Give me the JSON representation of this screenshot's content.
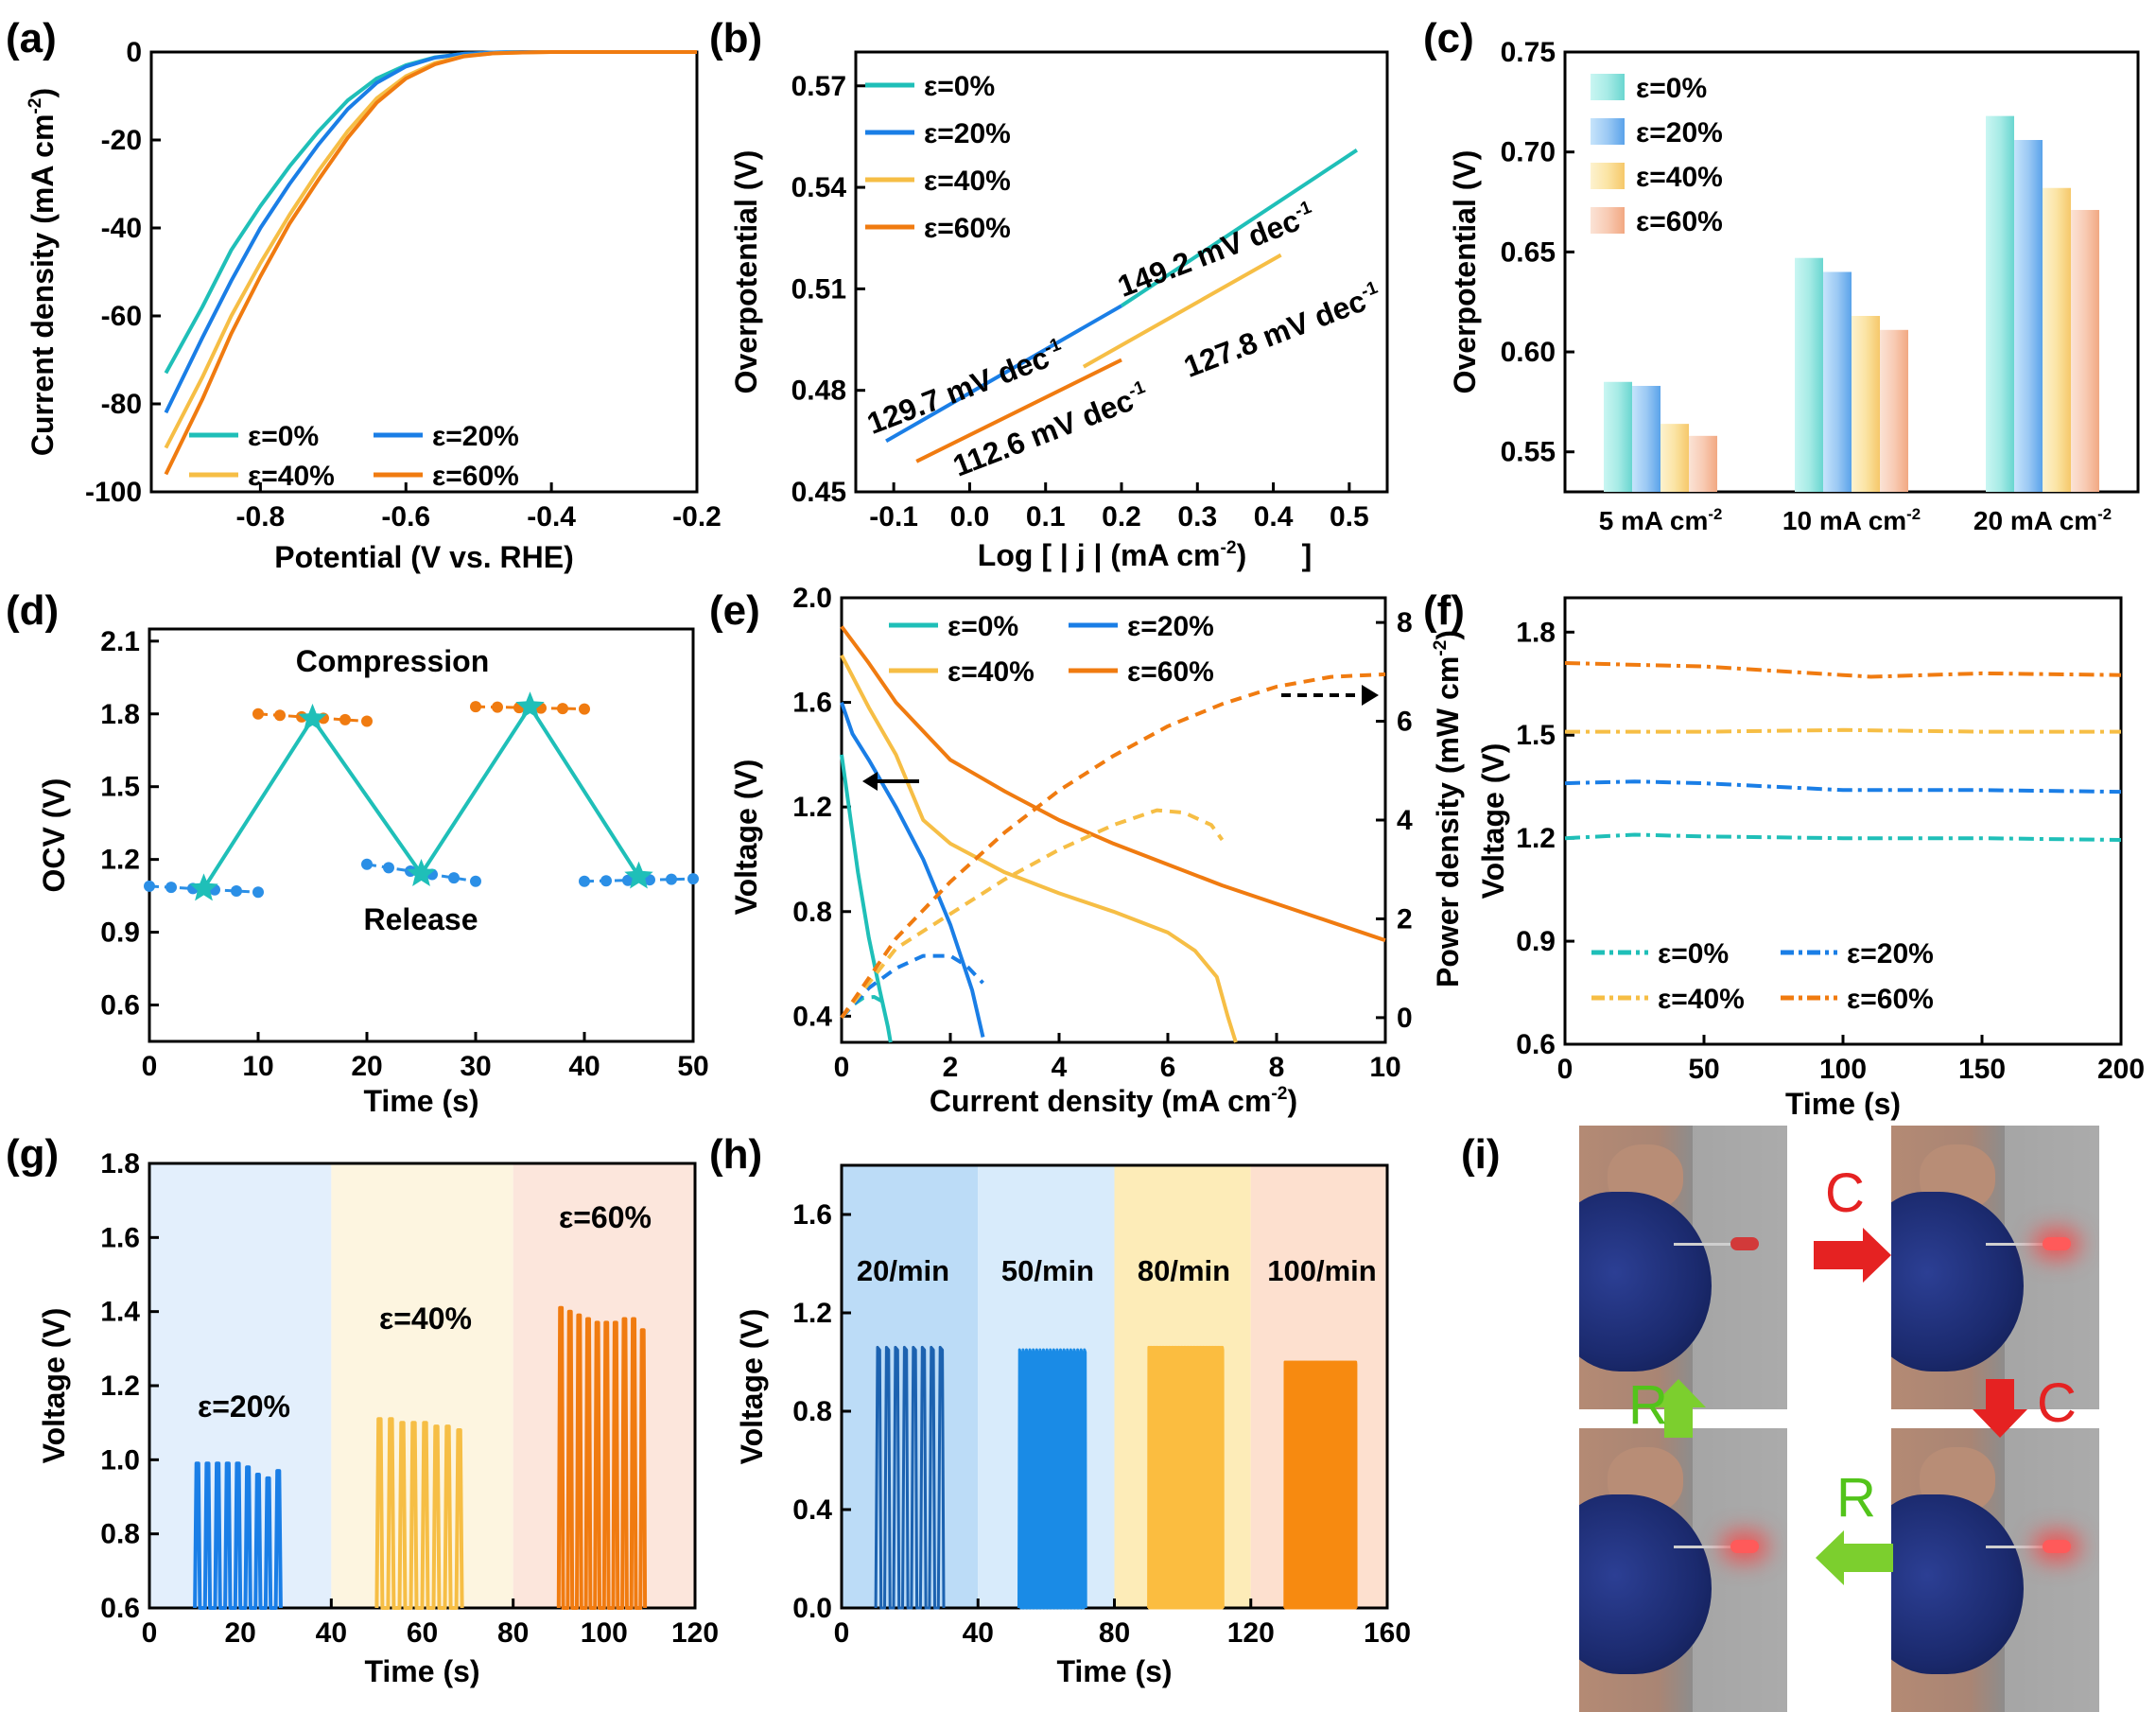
{
  "panel_labels": [
    "(a)",
    "(b)",
    "(c)",
    "(d)",
    "(e)",
    "(f)",
    "(g)",
    "(h)",
    "(i)"
  ],
  "colors": {
    "e0": "#1fbfb8",
    "e20": "#1a7ee6",
    "e40": "#f6be45",
    "e60": "#f07b10"
  },
  "chart_data": [
    {
      "id": "a",
      "type": "line",
      "xlabel": "Potential (V vs. RHE)",
      "ylabel": "Current density (mA cm-2)",
      "xlim": [
        -0.95,
        -0.2
      ],
      "ylim": [
        -100,
        0
      ],
      "xticks": [
        -0.8,
        -0.6,
        -0.4,
        -0.2
      ],
      "yticks": [
        0,
        -20,
        -40,
        -60,
        -80,
        -100
      ],
      "legend": [
        "ε=0%",
        "ε=20%",
        "ε=40%",
        "ε=60%"
      ],
      "series": [
        {
          "name": "ε=0%",
          "x": [
            -0.93,
            -0.88,
            -0.84,
            -0.8,
            -0.76,
            -0.72,
            -0.68,
            -0.64,
            -0.6,
            -0.56,
            -0.52,
            -0.48,
            -0.44,
            -0.4,
            -0.3,
            -0.2
          ],
          "y": [
            -73,
            -58,
            -45,
            -35,
            -26,
            -18,
            -11,
            -6,
            -3,
            -1.2,
            -0.4,
            -0.1,
            0,
            0,
            0,
            0
          ]
        },
        {
          "name": "ε=20%",
          "x": [
            -0.93,
            -0.88,
            -0.84,
            -0.8,
            -0.76,
            -0.72,
            -0.68,
            -0.64,
            -0.6,
            -0.56,
            -0.52,
            -0.48,
            -0.44,
            -0.4,
            -0.3,
            -0.2
          ],
          "y": [
            -82,
            -65,
            -52,
            -40,
            -30,
            -21,
            -13,
            -7,
            -3.3,
            -1.3,
            -0.4,
            -0.1,
            0,
            0,
            0,
            0
          ]
        },
        {
          "name": "ε=40%",
          "x": [
            -0.93,
            -0.88,
            -0.84,
            -0.8,
            -0.76,
            -0.72,
            -0.68,
            -0.64,
            -0.6,
            -0.56,
            -0.52,
            -0.48,
            -0.44,
            -0.4,
            -0.3,
            -0.2
          ],
          "y": [
            -90,
            -74,
            -60,
            -48,
            -37,
            -27,
            -18,
            -10.5,
            -5.5,
            -2.5,
            -0.9,
            -0.3,
            -0.1,
            0,
            0,
            0
          ]
        },
        {
          "name": "ε=60%",
          "x": [
            -0.93,
            -0.88,
            -0.84,
            -0.8,
            -0.76,
            -0.72,
            -0.68,
            -0.64,
            -0.6,
            -0.56,
            -0.52,
            -0.48,
            -0.44,
            -0.4,
            -0.3,
            -0.2
          ],
          "y": [
            -96,
            -79,
            -64,
            -51,
            -39,
            -29,
            -19.5,
            -11.5,
            -6,
            -2.8,
            -1,
            -0.3,
            -0.1,
            0,
            0,
            0
          ]
        }
      ]
    },
    {
      "id": "b",
      "type": "line",
      "xlabel": "Log [ | j | (mA cm-2)]",
      "ylabel": "Overpotential (V)",
      "xlim": [
        -0.15,
        0.55
      ],
      "ylim": [
        0.45,
        0.58
      ],
      "xticks": [
        -0.1,
        0.0,
        0.1,
        0.2,
        0.3,
        0.4,
        0.5
      ],
      "yticks": [
        0.45,
        0.48,
        0.51,
        0.54,
        0.57
      ],
      "legend": [
        "ε=0%",
        "ε=20%",
        "ε=40%",
        "ε=60%"
      ],
      "series": [
        {
          "name": "ε=0%",
          "x": [
            0.2,
            0.51
          ],
          "y": [
            0.505,
            0.551
          ]
        },
        {
          "name": "ε=20%",
          "x": [
            -0.11,
            0.2
          ],
          "y": [
            0.465,
            0.505
          ]
        },
        {
          "name": "ε=40%",
          "x": [
            0.15,
            0.41
          ],
          "y": [
            0.487,
            0.52
          ]
        },
        {
          "name": "ε=60%",
          "x": [
            -0.07,
            0.2
          ],
          "y": [
            0.459,
            0.489
          ]
        }
      ],
      "annotations": [
        "129.7 mV dec-1",
        "149.2 mV dec-1",
        "112.6 mV dec-1",
        "127.8 mV dec-1"
      ]
    },
    {
      "id": "c",
      "type": "bar",
      "ylabel": "Overpotential (V)",
      "categories": [
        "5 mA cm-2",
        "10 mA cm-2",
        "20 mA cm-2"
      ],
      "ylim": [
        0.53,
        0.75
      ],
      "yticks": [
        0.55,
        0.6,
        0.65,
        0.7,
        0.75
      ],
      "legend": [
        "ε=0%",
        "ε=20%",
        "ε=40%",
        "ε=60%"
      ],
      "series": [
        {
          "name": "ε=0%",
          "values": [
            0.585,
            0.647,
            0.718
          ]
        },
        {
          "name": "ε=20%",
          "values": [
            0.583,
            0.64,
            0.706
          ]
        },
        {
          "name": "ε=40%",
          "values": [
            0.564,
            0.618,
            0.682
          ]
        },
        {
          "name": "ε=60%",
          "values": [
            0.558,
            0.611,
            0.671
          ]
        }
      ]
    },
    {
      "id": "d",
      "type": "line",
      "xlabel": "Time (s)",
      "ylabel": "OCV (V)",
      "xlim": [
        0,
        50
      ],
      "ylim": [
        0.45,
        2.15
      ],
      "xticks": [
        0,
        10,
        20,
        30,
        40,
        50
      ],
      "yticks": [
        0.6,
        0.9,
        1.2,
        1.5,
        1.8,
        2.1
      ],
      "annotations": [
        "Compression",
        "Release"
      ],
      "release_segments": [
        {
          "x": [
            0,
            10
          ],
          "y": [
            1.09,
            1.065
          ]
        },
        {
          "x": [
            20,
            30
          ],
          "y": [
            1.18,
            1.11
          ]
        },
        {
          "x": [
            40,
            50
          ],
          "y": [
            1.11,
            1.12
          ]
        }
      ],
      "compression_segments": [
        {
          "x": [
            10,
            20
          ],
          "y": [
            1.8,
            1.77
          ]
        },
        {
          "x": [
            30,
            40
          ],
          "y": [
            1.83,
            1.82
          ]
        }
      ],
      "star_path": {
        "x": [
          5,
          15,
          25,
          35,
          45
        ],
        "y": [
          1.08,
          1.78,
          1.14,
          1.83,
          1.13
        ]
      }
    },
    {
      "id": "e",
      "type": "line",
      "xlabel": "Current density (mA cm-2)",
      "ylabel": "Voltage (V)",
      "y2label": "Power density (mW cm-2)",
      "xlim": [
        0,
        10
      ],
      "ylim": [
        0.3,
        2.0
      ],
      "y2lim": [
        -0.5,
        8.5
      ],
      "xticks": [
        0,
        2,
        4,
        6,
        8,
        10
      ],
      "yticks": [
        0.4,
        0.8,
        1.2,
        1.6,
        2.0
      ],
      "y2ticks": [
        0,
        2,
        4,
        6,
        8
      ],
      "legend": [
        "ε=0%",
        "ε=20%",
        "ε=40%",
        "ε=60%"
      ],
      "voltage_series": [
        {
          "name": "ε=0%",
          "x": [
            0,
            0.1,
            0.3,
            0.5,
            0.7,
            0.85,
            0.9
          ],
          "y": [
            1.4,
            1.25,
            0.95,
            0.7,
            0.5,
            0.36,
            0.3
          ]
        },
        {
          "name": "ε=20%",
          "x": [
            0,
            0.2,
            0.5,
            1.0,
            1.5,
            2.0,
            2.4,
            2.6
          ],
          "y": [
            1.6,
            1.48,
            1.38,
            1.2,
            1.0,
            0.75,
            0.5,
            0.32
          ]
        },
        {
          "name": "ε=40%",
          "x": [
            0,
            0.5,
            1.0,
            1.5,
            2.0,
            3.0,
            4.0,
            5.0,
            6.0,
            6.5,
            6.9,
            7.1,
            7.25
          ],
          "y": [
            1.78,
            1.58,
            1.4,
            1.15,
            1.06,
            0.95,
            0.87,
            0.8,
            0.72,
            0.65,
            0.55,
            0.4,
            0.3
          ]
        },
        {
          "name": "ε=60%",
          "x": [
            0,
            0.5,
            1.0,
            2.0,
            3.0,
            4.0,
            5.0,
            6.0,
            7.0,
            8.0,
            9.0,
            10.0
          ],
          "y": [
            1.89,
            1.75,
            1.6,
            1.38,
            1.26,
            1.15,
            1.06,
            0.98,
            0.9,
            0.83,
            0.76,
            0.69
          ]
        }
      ],
      "power_series": [
        {
          "name": "ε=0%",
          "x": [
            0,
            0.2,
            0.4,
            0.6,
            0.8
          ],
          "y": [
            0,
            0.25,
            0.4,
            0.42,
            0.3
          ]
        },
        {
          "name": "ε=20%",
          "x": [
            0,
            0.5,
            1.0,
            1.5,
            2.0,
            2.3,
            2.6
          ],
          "y": [
            0,
            0.6,
            1.0,
            1.25,
            1.25,
            1.05,
            0.7
          ]
        },
        {
          "name": "ε=40%",
          "x": [
            0,
            1.0,
            2.0,
            3.0,
            4.0,
            5.0,
            5.8,
            6.3,
            6.8,
            7.0
          ],
          "y": [
            0,
            1.4,
            2.1,
            2.8,
            3.4,
            3.9,
            4.2,
            4.15,
            3.9,
            3.6
          ]
        },
        {
          "name": "ε=60%",
          "x": [
            0,
            1.0,
            2.0,
            3.0,
            4.0,
            5.0,
            6.0,
            7.0,
            8.0,
            9.0,
            10.0
          ],
          "y": [
            0,
            1.6,
            2.75,
            3.75,
            4.6,
            5.3,
            5.9,
            6.35,
            6.7,
            6.9,
            6.95
          ]
        }
      ]
    },
    {
      "id": "f",
      "type": "line",
      "xlabel": "Time (s)",
      "ylabel": "Voltage (V)",
      "xlim": [
        0,
        200
      ],
      "ylim": [
        0.6,
        1.9
      ],
      "xticks": [
        0,
        50,
        100,
        150,
        200
      ],
      "yticks": [
        0.6,
        0.9,
        1.2,
        1.5,
        1.8
      ],
      "legend": [
        "ε=0%",
        "ε=20%",
        "ε=40%",
        "ε=60%"
      ],
      "series": [
        {
          "name": "ε=0%",
          "x": [
            0,
            25,
            50,
            100,
            150,
            200
          ],
          "y": [
            1.2,
            1.21,
            1.205,
            1.2,
            1.2,
            1.195
          ]
        },
        {
          "name": "ε=20%",
          "x": [
            0,
            25,
            50,
            100,
            150,
            200
          ],
          "y": [
            1.36,
            1.365,
            1.36,
            1.34,
            1.34,
            1.335
          ]
        },
        {
          "name": "ε=40%",
          "x": [
            0,
            50,
            100,
            150,
            200
          ],
          "y": [
            1.51,
            1.51,
            1.515,
            1.51,
            1.51
          ]
        },
        {
          "name": "ε=60%",
          "x": [
            0,
            50,
            100,
            110,
            150,
            200
          ],
          "y": [
            1.71,
            1.7,
            1.675,
            1.67,
            1.68,
            1.675
          ]
        }
      ]
    },
    {
      "id": "g",
      "type": "line",
      "xlabel": "Time (s)",
      "ylabel": "Voltage (V)",
      "xlim": [
        0,
        120
      ],
      "ylim": [
        0.6,
        1.8
      ],
      "xticks": [
        0,
        20,
        40,
        60,
        80,
        100,
        120
      ],
      "yticks": [
        0.6,
        0.8,
        1.0,
        1.2,
        1.4,
        1.6,
        1.8
      ],
      "annotations": [
        "ε=20%",
        "ε=40%",
        "ε=60%"
      ],
      "regions": [
        {
          "x": [
            0,
            40
          ],
          "color": "#e3effc"
        },
        {
          "x": [
            40,
            80
          ],
          "color": "#fdf5e0"
        },
        {
          "x": [
            80,
            120
          ],
          "color": "#fce6dc"
        }
      ],
      "bursts": [
        {
          "start": 10,
          "end": 30,
          "peaks": [
            0.99,
            0.99,
            0.99,
            0.99,
            0.99,
            0.98,
            0.96,
            0.95,
            0.97
          ],
          "color": "#1a7ee6"
        },
        {
          "start": 50,
          "end": 70,
          "peaks": [
            1.11,
            1.11,
            1.1,
            1.1,
            1.1,
            1.09,
            1.09,
            1.08
          ],
          "color": "#f6be45"
        },
        {
          "start": 90,
          "end": 110,
          "peaks": [
            1.41,
            1.4,
            1.39,
            1.38,
            1.37,
            1.37,
            1.37,
            1.38,
            1.38,
            1.35
          ],
          "color": "#f07b10"
        }
      ]
    },
    {
      "id": "h",
      "type": "line",
      "xlabel": "Time (s)",
      "ylabel": "Voltage (V)",
      "xlim": [
        0,
        160
      ],
      "ylim": [
        0.0,
        1.8
      ],
      "xticks": [
        0,
        40,
        80,
        120,
        160
      ],
      "yticks": [
        0.0,
        0.4,
        0.8,
        1.2,
        1.6
      ],
      "annotations": [
        "20/min",
        "50/min",
        "80/min",
        "100/min"
      ],
      "regions": [
        {
          "x": [
            0,
            40
          ],
          "color": "#bcdcf7"
        },
        {
          "x": [
            40,
            80
          ],
          "color": "#d8ebfb"
        },
        {
          "x": [
            80,
            120
          ],
          "color": "#fdecb8"
        },
        {
          "x": [
            120,
            160
          ],
          "color": "#fde0cf"
        }
      ],
      "bursts": [
        {
          "start": 10,
          "end": 31,
          "count": 8,
          "peak": 1.06,
          "color": "#1c62b0"
        },
        {
          "start": 52,
          "end": 72,
          "count": 20,
          "peak": 1.05,
          "color": "#1a8be6"
        },
        {
          "start": 90,
          "end": 112,
          "count": 55,
          "peak": 1.06,
          "color": "#fbbd40"
        },
        {
          "start": 130,
          "end": 151,
          "count": 70,
          "peak": 1.0,
          "color": "#f78a10"
        }
      ]
    }
  ],
  "panel_i": {
    "labels": {
      "c1": "C",
      "c2": "C",
      "r1": "R",
      "r2": "R"
    }
  }
}
